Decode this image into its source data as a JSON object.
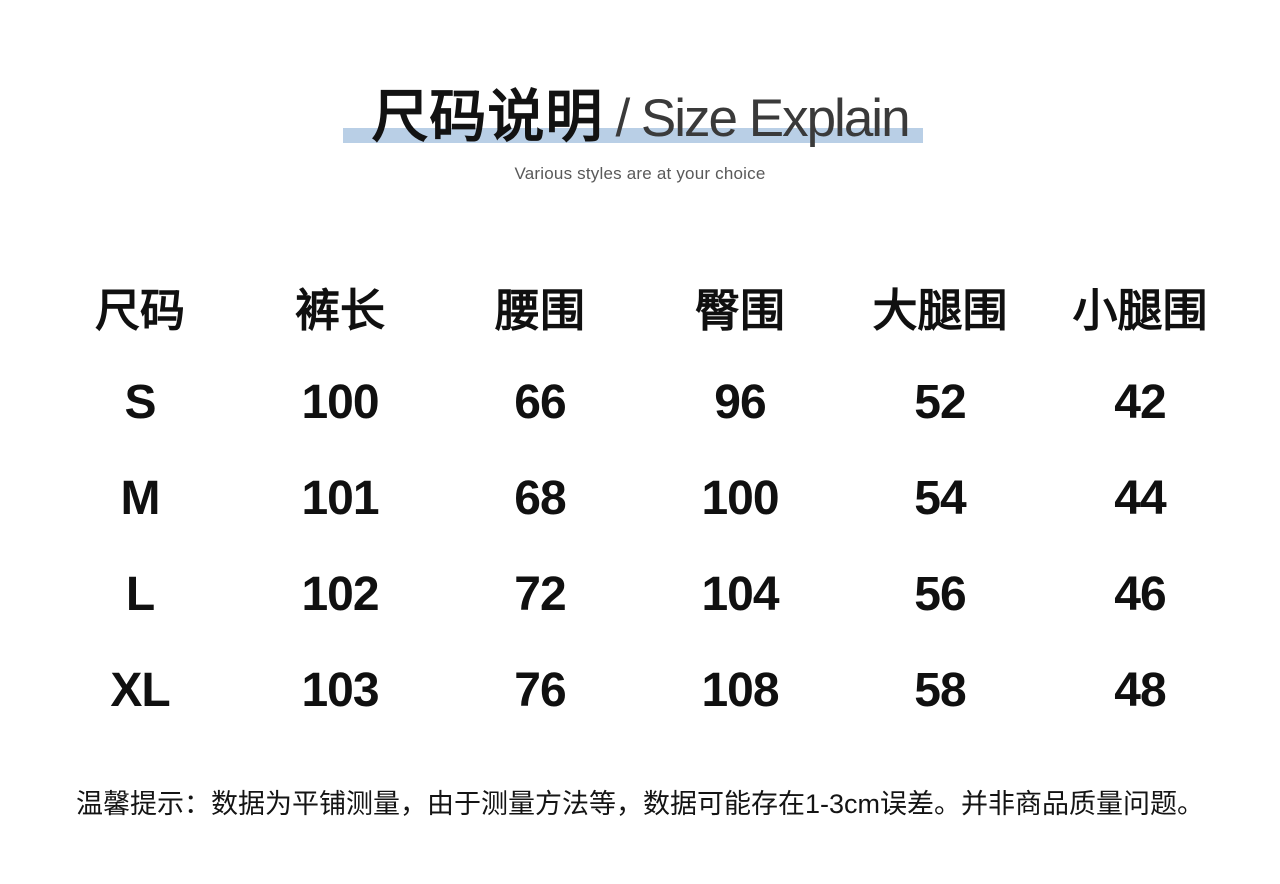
{
  "header": {
    "title_zh": "尺码说明",
    "title_en": "/ Size Explain",
    "subtitle": "Various styles are at your choice",
    "highlight_color": "#b9cfe6"
  },
  "chart_data": {
    "type": "table",
    "title": "尺码说明 / Size Explain",
    "columns": [
      "尺码",
      "裤长",
      "腰围",
      "臀围",
      "大腿围",
      "小腿围"
    ],
    "rows": [
      [
        "S",
        "100",
        "66",
        "96",
        "52",
        "42"
      ],
      [
        "M",
        "101",
        "68",
        "100",
        "54",
        "44"
      ],
      [
        "L",
        "102",
        "72",
        "104",
        "56",
        "46"
      ],
      [
        "XL",
        "103",
        "76",
        "108",
        "58",
        "48"
      ]
    ]
  },
  "note": "温馨提示：数据为平铺测量，由于测量方法等，数据可能存在1-3cm误差。并非商品质量问题。"
}
